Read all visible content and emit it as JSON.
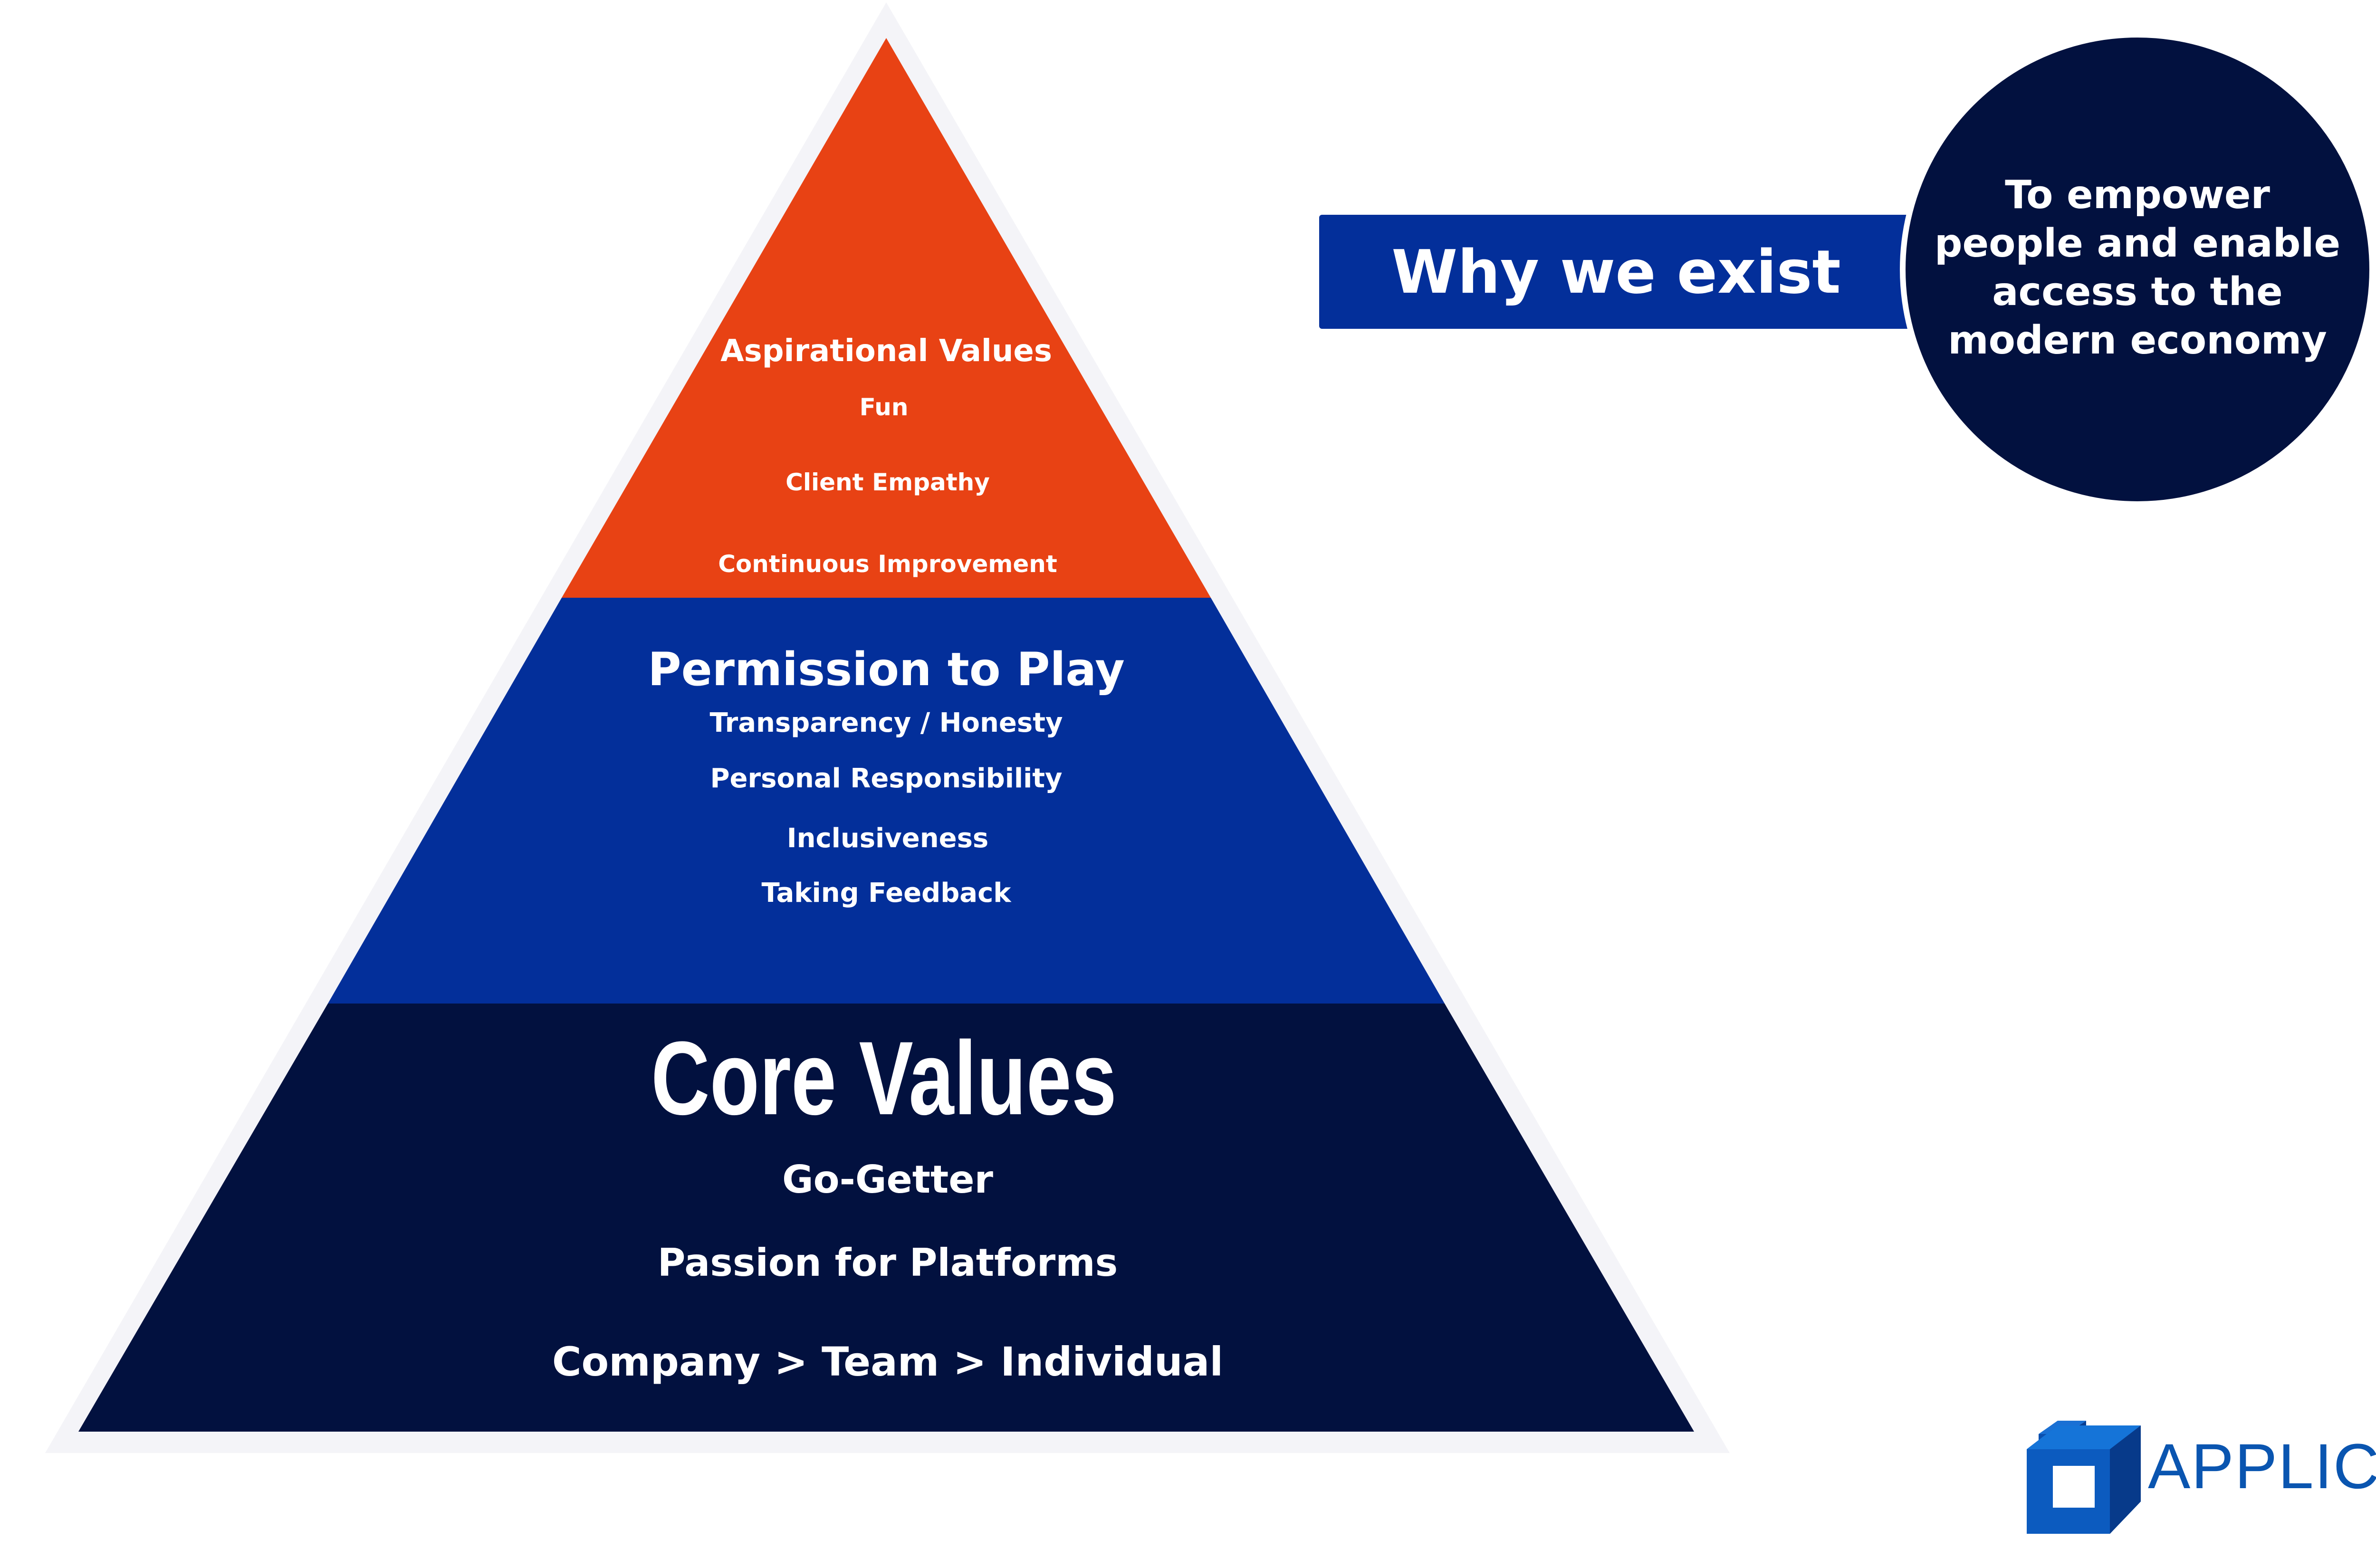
{
  "pyramid": {
    "top": {
      "title": "Aspirational Values",
      "items": [
        "Fun",
        "Client Empathy",
        "Continuous Improvement"
      ],
      "color": "#e84214"
    },
    "middle": {
      "title": "Permission to Play",
      "items": [
        "Transparency / Honesty",
        "Personal Responsibility",
        "Inclusiveness",
        "Taking Feedback"
      ],
      "color": "#032f9a"
    },
    "bottom": {
      "title": "Core Values",
      "items": [
        "Go-Getter",
        "Passion for Platforms",
        "Company > Team > Individual"
      ],
      "color": "#02113f"
    }
  },
  "why": {
    "label": "Why we exist",
    "statement_lines": [
      "To empower",
      "people and enable",
      "access to the",
      "modern economy"
    ],
    "label_color": "#032f9a",
    "circle_color": "#02113f"
  },
  "logo": {
    "text": "APPLICO",
    "color": "#0a55b0",
    "icon": "applico-cube-icon"
  }
}
